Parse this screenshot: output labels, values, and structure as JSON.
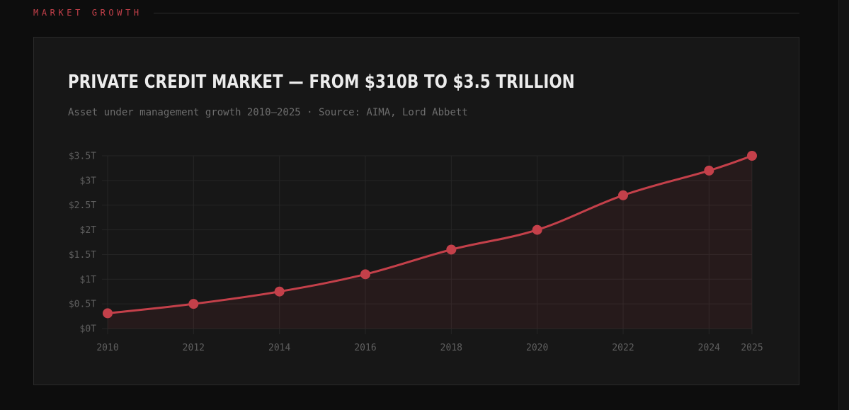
{
  "section": {
    "label": "MARKET GROWTH"
  },
  "colors": {
    "accent": "#c4404a",
    "background": "#0d0d0d",
    "card": "#171717",
    "grid": "#262626",
    "text_muted": "#5f5f5f"
  },
  "chart_data": {
    "type": "line",
    "title": "PRIVATE CREDIT MARKET — FROM $310B TO $3.5 TRILLION",
    "subtitle": "Asset under management growth 2010–2025 · Source: AIMA, Lord Abbett",
    "xlabel": "",
    "ylabel": "",
    "x": [
      2010,
      2012,
      2014,
      2016,
      2018,
      2020,
      2022,
      2024,
      2025
    ],
    "x_tick_labels": [
      "2010",
      "2012",
      "2014",
      "2016",
      "2018",
      "2020",
      "2022",
      "2024",
      "2025"
    ],
    "ylim": [
      0,
      3.5
    ],
    "y_ticks": [
      0,
      0.5,
      1,
      1.5,
      2,
      2.5,
      3,
      3.5
    ],
    "y_tick_labels": [
      "$0T",
      "$0.5T",
      "$1T",
      "$1.5T",
      "$2T",
      "$2.5T",
      "$3T",
      "$3.5T"
    ],
    "grid": true,
    "area_fill": true,
    "series": [
      {
        "values": [
          0.31,
          0.5,
          0.75,
          1.1,
          1.6,
          2.0,
          2.7,
          3.2,
          3.5
        ]
      }
    ]
  }
}
